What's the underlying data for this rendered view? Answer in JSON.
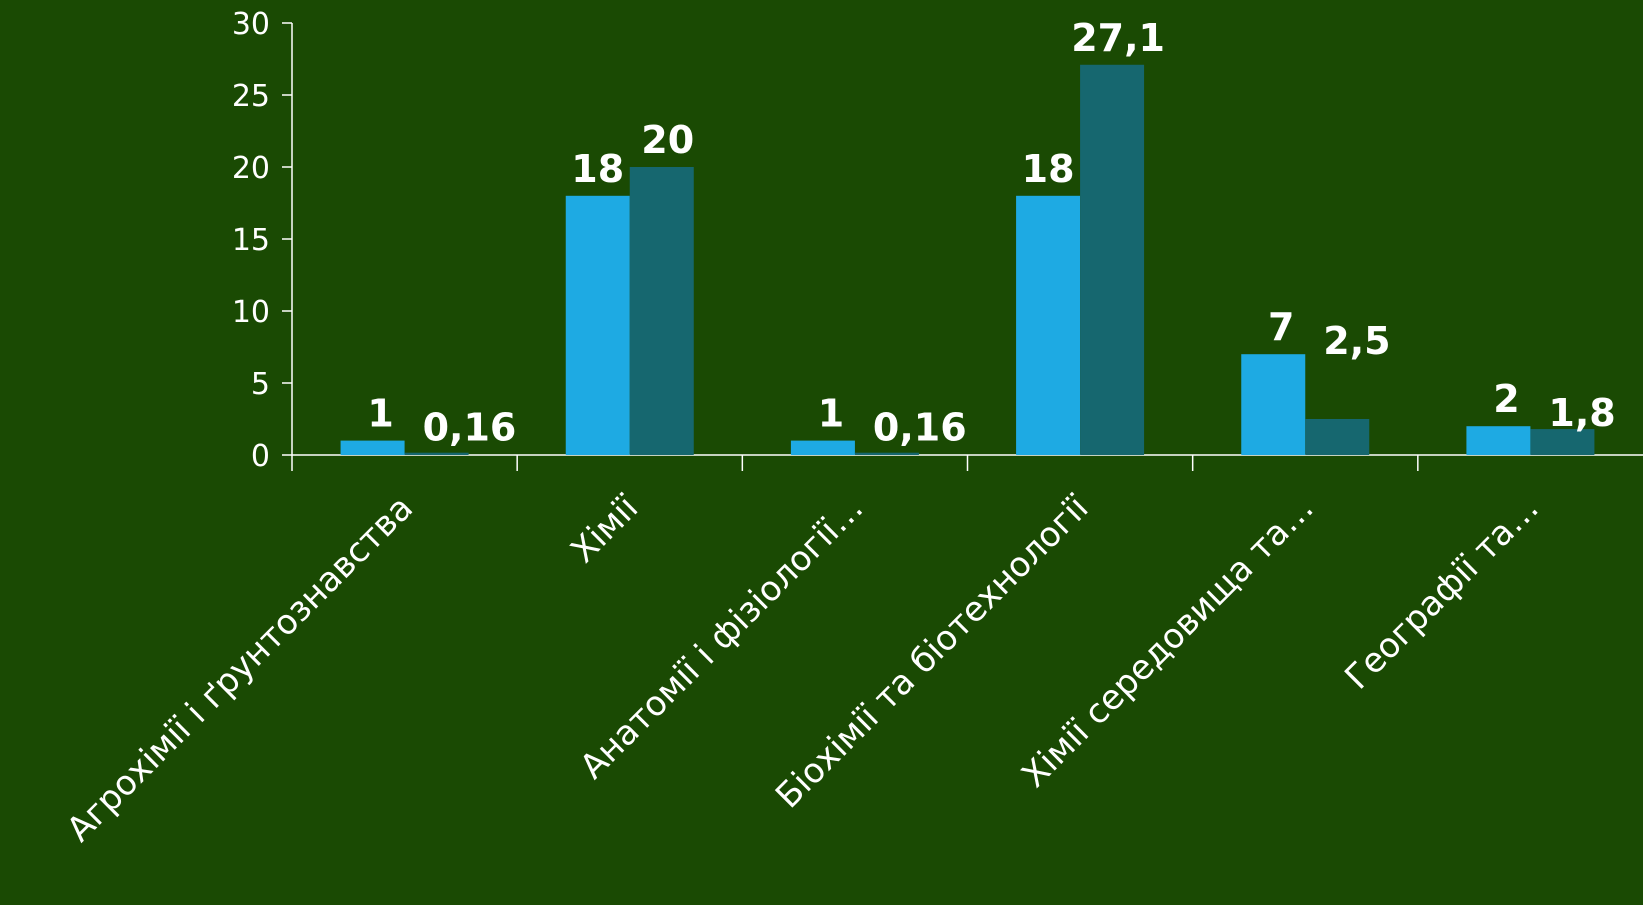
{
  "chart_data": {
    "type": "bar",
    "categories": [
      "Агрохімії і ґрунтознавства",
      "Хімії",
      "Анатомії і фізіології…",
      "Біохімії та біотехнології",
      "Хімії середовища та…",
      "Географії та…"
    ],
    "series": [
      {
        "values": [
          1,
          18,
          1,
          18,
          7,
          2
        ],
        "labels": [
          "1",
          "18",
          "1",
          "18",
          "7",
          "2"
        ],
        "color": "#1eaae3"
      },
      {
        "values": [
          0.16,
          20,
          0.16,
          27.1,
          2.5,
          1.8
        ],
        "labels": [
          "0,16",
          "20",
          "0,16",
          "27,1",
          "2,5",
          "1,8"
        ],
        "color": "#16676f"
      }
    ],
    "yticks": [
      "0",
      "5",
      "10",
      "15",
      "20",
      "25",
      "30"
    ],
    "ylim": [
      0,
      30
    ],
    "grid": false,
    "legend": "none",
    "colors": {
      "background": "#1a4a03",
      "axis": "#ffffff",
      "text": "#ffffff"
    }
  }
}
